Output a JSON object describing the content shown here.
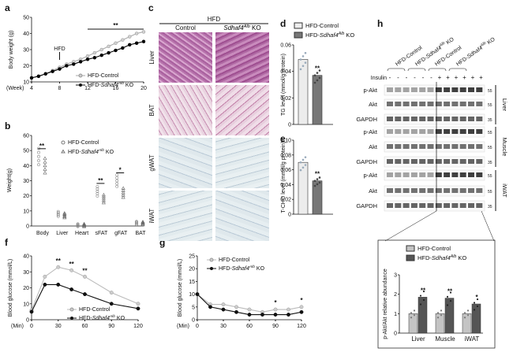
{
  "panels": {
    "a": "a",
    "b": "b",
    "c": "c",
    "d": "d",
    "e": "e",
    "f": "f",
    "g": "g",
    "h": "h"
  },
  "colors": {
    "control": "#c8c8c8",
    "ko": "#000000",
    "ko_bar": "#555555",
    "control_bar": "#bdbdbd"
  },
  "chart_data": [
    {
      "id": "a",
      "type": "line",
      "ylabel": "Body weight (g)",
      "xlabel": "(Week)",
      "ylim": [
        10,
        50
      ],
      "yticks": [
        10,
        20,
        30,
        40,
        50
      ],
      "xticks": [
        4,
        8,
        12,
        16,
        20
      ],
      "annotation": "HFD",
      "significance": "**",
      "legend": [
        "HFD-Control",
        "HFD-Sdhaf4Alb KO"
      ],
      "series": [
        {
          "name": "HFD-Control",
          "x": [
            4,
            5,
            6,
            7,
            8,
            9,
            10,
            11,
            12,
            13,
            14,
            15,
            16,
            17,
            18,
            19,
            20
          ],
          "values": [
            12.5,
            13.5,
            15,
            17,
            19,
            21,
            22.5,
            24,
            26,
            28,
            30,
            32,
            34,
            36,
            38,
            40,
            41
          ]
        },
        {
          "name": "HFD-Sdhaf4Alb KO",
          "x": [
            4,
            5,
            6,
            7,
            8,
            9,
            10,
            11,
            12,
            13,
            14,
            15,
            16,
            17,
            18,
            19,
            20
          ],
          "values": [
            12.5,
            13.5,
            15,
            16.5,
            18,
            20,
            21,
            22.5,
            24,
            25,
            26.5,
            28,
            29.5,
            31,
            33,
            34,
            35
          ]
        }
      ]
    },
    {
      "id": "b",
      "type": "scatter",
      "ylabel": "Weight(g)",
      "ylim": [
        0,
        60
      ],
      "yticks": [
        0,
        10,
        20,
        30,
        40,
        50,
        60
      ],
      "categories": [
        "Body",
        "Liver",
        "Heart",
        "sFAT",
        "gFAT",
        "BAT"
      ],
      "series": [
        {
          "name": "HFD-Control",
          "values": [
            46,
            8,
            0.5,
            23,
            30,
            2
          ]
        },
        {
          "name": "HFD-Sdhaf4Alb KO",
          "values": [
            40,
            7,
            0.5,
            18,
            22,
            1.8
          ]
        }
      ],
      "significance": [
        {
          "cat": "Body",
          "text": "**"
        },
        {
          "cat": "sFAT",
          "text": "**"
        },
        {
          "cat": "gFAT",
          "text": "*"
        }
      ]
    },
    {
      "id": "d",
      "type": "bar",
      "ylabel": "TG level (mmol/g protein)",
      "ylim": [
        0,
        0.06
      ],
      "yticks": [
        "0",
        "0.02",
        "0.04",
        "0.06"
      ],
      "categories": [
        "HFD-Control",
        "HFD-Sdhaf4Alb KO"
      ],
      "values": [
        0.049,
        0.037
      ],
      "significance": "**"
    },
    {
      "id": "e",
      "type": "bar",
      "ylabel": "T-CHO level (mmol/g protein)",
      "ylim": [
        0,
        0.1
      ],
      "yticks": [
        "0",
        "0.02",
        "0.04",
        "0.06",
        "0.08",
        "0.10"
      ],
      "categories": [
        "HFD-Control",
        "HFD-Sdhaf4Alb KO"
      ],
      "values": [
        0.07,
        0.045
      ],
      "significance": "**"
    },
    {
      "id": "f",
      "type": "line",
      "ylabel": "Blood glucose (mmol/L)",
      "xlabel": "(Min)",
      "ylim": [
        0,
        40
      ],
      "yticks": [
        0,
        10,
        20,
        30,
        40
      ],
      "xticks": [
        0,
        30,
        60,
        90,
        120
      ],
      "series": [
        {
          "name": "HFD-Control",
          "x": [
            0,
            15,
            30,
            45,
            60,
            90,
            120
          ],
          "values": [
            6,
            27,
            33,
            31,
            27,
            17,
            10
          ]
        },
        {
          "name": "HFD-Sdhaf4Alb KO",
          "x": [
            0,
            15,
            30,
            45,
            60,
            90,
            120
          ],
          "values": [
            5,
            22,
            22,
            19,
            16,
            10,
            7
          ]
        }
      ],
      "significance": [
        "**",
        "**",
        "**"
      ]
    },
    {
      "id": "g",
      "type": "line",
      "ylabel": "Blood glucose (mmol/L)",
      "xlabel": "(Min)",
      "ylim": [
        0,
        25
      ],
      "yticks": [
        0,
        5,
        10,
        15,
        20,
        25
      ],
      "xticks": [
        0,
        30,
        60,
        90,
        120
      ],
      "series": [
        {
          "name": "HFD-Control",
          "x": [
            0,
            15,
            30,
            45,
            60,
            75,
            90,
            105,
            120
          ],
          "values": [
            10,
            6,
            6,
            5,
            4,
            3,
            4,
            4,
            5
          ]
        },
        {
          "name": "HFD-Sdhaf4Alb KO",
          "x": [
            0,
            15,
            30,
            45,
            60,
            75,
            90,
            105,
            120
          ],
          "values": [
            10,
            5,
            4,
            3,
            2,
            2,
            2,
            2,
            3
          ]
        }
      ],
      "significance": [
        "*",
        "*"
      ]
    },
    {
      "id": "h",
      "type": "bar",
      "ylabel": "p-Akt/Akt relative abundance",
      "ylim": [
        0,
        3
      ],
      "yticks": [
        0,
        1,
        2,
        3
      ],
      "categories": [
        "Liver",
        "Muscle",
        "iWAT"
      ],
      "series": [
        {
          "name": "HFD-Control",
          "values": [
            1,
            1,
            1
          ]
        },
        {
          "name": "HFD-Sdhaf4Alb KO",
          "values": [
            1.85,
            1.8,
            1.5
          ]
        }
      ],
      "significance": [
        "**",
        "**",
        "*"
      ]
    }
  ],
  "legend": {
    "control": "HFD-Control",
    "ko_prefix": "HFD-",
    "ko_gene": "Sdhaf4",
    "ko_sup": "Alb",
    "ko_suffix": " KO"
  },
  "histology": {
    "header": "HFD",
    "col_control": "Control",
    "col_ko": "Sdhaf4",
    "col_ko_sup": "Alb",
    "col_ko_suffix": " KO",
    "rows": [
      "Liver",
      "BAT",
      "gWAT",
      "iWAT"
    ]
  },
  "blot": {
    "groups": [
      "HFD-Control",
      "HFD-Sdhaf4Alb KO",
      "HFD-Control",
      "HFD-Sdhaf4Alb KO"
    ],
    "insulin_label": "Insulin",
    "insulin_signs": [
      "-",
      "-",
      "-",
      "-",
      "-",
      "-",
      "+",
      "+",
      "+",
      "+",
      "+",
      "+"
    ],
    "bands": [
      [
        "p-Akt",
        "Akt",
        "GAPDH"
      ],
      [
        "p-Akt",
        "Akt",
        "GAPDH"
      ],
      [
        "p-Akt",
        "Akt",
        "GAPDH"
      ]
    ],
    "tissues": [
      "Liver",
      "Muscle",
      "iWAT"
    ],
    "markers": [
      [
        "55",
        "55",
        "35"
      ],
      [
        "55",
        "55",
        "35"
      ],
      [
        "55",
        "55",
        "35"
      ]
    ]
  }
}
